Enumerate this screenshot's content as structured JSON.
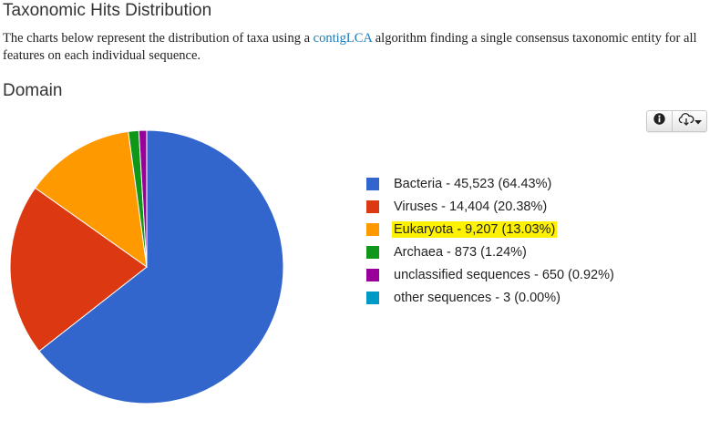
{
  "page": {
    "section_title": "Taxonomic Hits Distribution",
    "description_before": "The charts below represent the distribution of taxa using a ",
    "description_link": "contigLCA",
    "description_after": " algorithm finding a single consensus taxonomic entity for all features on each individual sequence.",
    "chart_heading": "Domain"
  },
  "toolbar": {
    "info_icon": "info-icon",
    "download_icon": "cloud-download-icon",
    "dropdown_icon": "caret-down-icon"
  },
  "chart_data": {
    "type": "pie",
    "title": "Domain",
    "legend_position": "right",
    "slices": [
      {
        "name": "Bacteria",
        "value": 45523,
        "percent": 64.43,
        "label": "Bacteria - 45,523 (64.43%)",
        "color": "#3366cc",
        "highlighted": false
      },
      {
        "name": "Viruses",
        "value": 14404,
        "percent": 20.38,
        "label": "Viruses - 14,404 (20.38%)",
        "color": "#dc3912",
        "highlighted": false
      },
      {
        "name": "Eukaryota",
        "value": 9207,
        "percent": 13.03,
        "label": "Eukaryota - 9,207 (13.03%)",
        "color": "#ff9900",
        "highlighted": true
      },
      {
        "name": "Archaea",
        "value": 873,
        "percent": 1.24,
        "label": "Archaea - 873 (1.24%)",
        "color": "#109618",
        "highlighted": false
      },
      {
        "name": "unclassified sequences",
        "value": 650,
        "percent": 0.92,
        "label": "unclassified sequences - 650 (0.92%)",
        "color": "#990099",
        "highlighted": false
      },
      {
        "name": "other sequences",
        "value": 3,
        "percent": 0.0,
        "label": "other sequences - 3 (0.00%)",
        "color": "#0099c6",
        "highlighted": false
      }
    ]
  }
}
